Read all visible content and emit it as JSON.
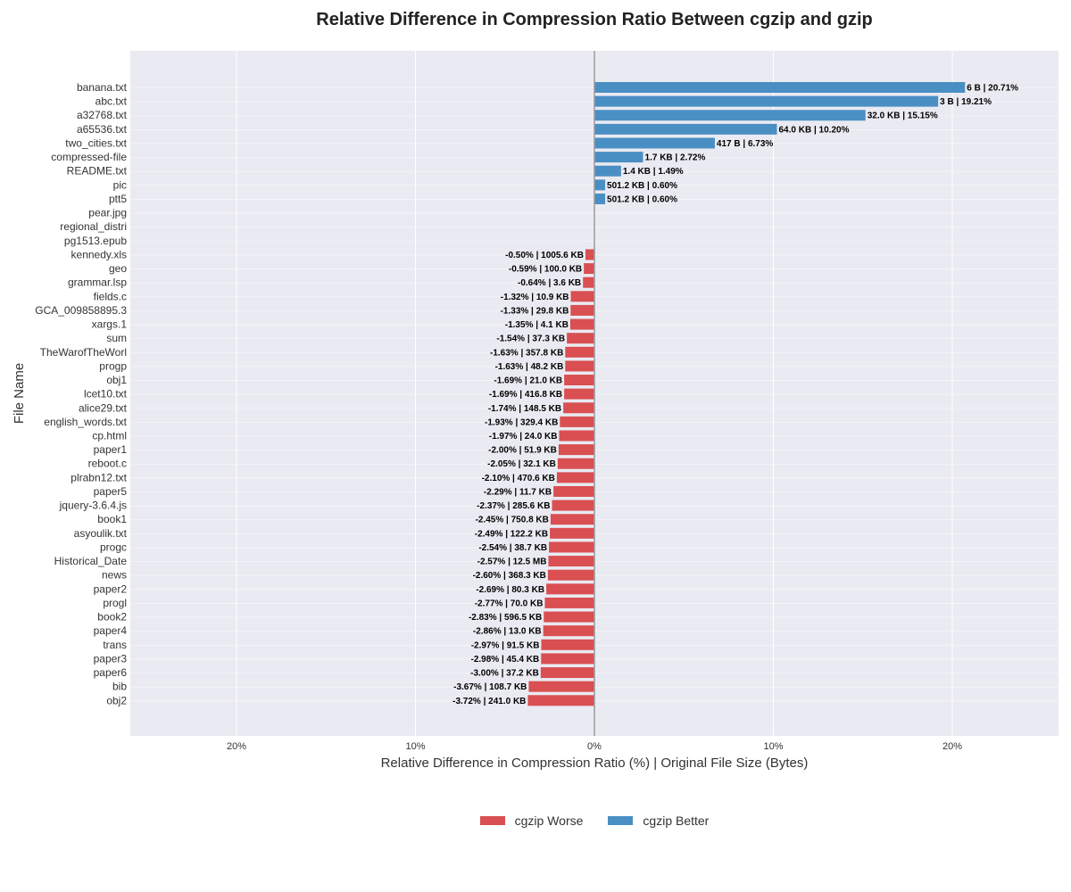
{
  "chart_data": {
    "type": "bar",
    "orientation": "horizontal",
    "title": "Relative Difference in Compression Ratio Between cgzip and gzip",
    "xlabel": "Relative Difference in Compression Ratio (%) | Original File Size (Bytes)",
    "ylabel": "File Name",
    "xlim": [
      -26,
      26
    ],
    "xticks": [
      -20,
      -10,
      0,
      10,
      20
    ],
    "xtick_labels": [
      "20%",
      "10%",
      "0%",
      "10%",
      "20%"
    ],
    "grid": true,
    "legend_position": "bottom-center",
    "colors": {
      "worse": "#d94f52",
      "better": "#4a8fc4",
      "background": "#eaeaf2",
      "zero_line": "#999999"
    },
    "legend": [
      {
        "name": "cgzip Worse",
        "color": "#d94f52"
      },
      {
        "name": "cgzip Better",
        "color": "#4a8fc4"
      }
    ],
    "bars": [
      {
        "name": "banana.txt",
        "value": 20.71,
        "label": "6 B | 20.71%"
      },
      {
        "name": "abc.txt",
        "value": 19.21,
        "label": "3 B | 19.21%"
      },
      {
        "name": "a32768.txt",
        "value": 15.15,
        "label": "32.0 KB | 15.15%"
      },
      {
        "name": "a65536.txt",
        "value": 10.2,
        "label": "64.0 KB | 10.20%"
      },
      {
        "name": "two_cities.txt",
        "value": 6.73,
        "label": "417 B | 6.73%"
      },
      {
        "name": "compressed-file",
        "value": 2.72,
        "label": "1.7 KB | 2.72%"
      },
      {
        "name": "README.txt",
        "value": 1.49,
        "label": "1.4 KB | 1.49%"
      },
      {
        "name": "pic",
        "value": 0.6,
        "label": "501.2 KB | 0.60%"
      },
      {
        "name": "ptt5",
        "value": 0.6,
        "label": "501.2 KB | 0.60%"
      },
      {
        "name": "pear.jpg",
        "value": 0,
        "label": ""
      },
      {
        "name": "regional_distri",
        "value": 0,
        "label": ""
      },
      {
        "name": "pg1513.epub",
        "value": -0.01,
        "label": ""
      },
      {
        "name": "kennedy.xls",
        "value": -0.5,
        "label": "-0.50% | 1005.6 KB"
      },
      {
        "name": "geo",
        "value": -0.59,
        "label": "-0.59% | 100.0 KB"
      },
      {
        "name": "grammar.lsp",
        "value": -0.64,
        "label": "-0.64% | 3.6 KB"
      },
      {
        "name": "fields.c",
        "value": -1.32,
        "label": "-1.32% | 10.9 KB"
      },
      {
        "name": "GCA_009858895.3",
        "value": -1.33,
        "label": "-1.33% | 29.8 KB"
      },
      {
        "name": "xargs.1",
        "value": -1.35,
        "label": "-1.35% | 4.1 KB"
      },
      {
        "name": "sum",
        "value": -1.54,
        "label": "-1.54% | 37.3 KB"
      },
      {
        "name": "TheWarofTheWorl",
        "value": -1.63,
        "label": "-1.63% | 357.8 KB"
      },
      {
        "name": "progp",
        "value": -1.63,
        "label": "-1.63% | 48.2 KB"
      },
      {
        "name": "obj1",
        "value": -1.69,
        "label": "-1.69% | 21.0 KB"
      },
      {
        "name": "lcet10.txt",
        "value": -1.69,
        "label": "-1.69% | 416.8 KB"
      },
      {
        "name": "alice29.txt",
        "value": -1.74,
        "label": "-1.74% | 148.5 KB"
      },
      {
        "name": "english_words.txt",
        "value": -1.93,
        "label": "-1.93% | 329.4 KB"
      },
      {
        "name": "cp.html",
        "value": -1.97,
        "label": "-1.97% | 24.0 KB"
      },
      {
        "name": "paper1",
        "value": -2.0,
        "label": "-2.00% | 51.9 KB"
      },
      {
        "name": "reboot.c",
        "value": -2.05,
        "label": "-2.05% | 32.1 KB"
      },
      {
        "name": "plrabn12.txt",
        "value": -2.1,
        "label": "-2.10% | 470.6 KB"
      },
      {
        "name": "paper5",
        "value": -2.29,
        "label": "-2.29% | 11.7 KB"
      },
      {
        "name": "jquery-3.6.4.js",
        "value": -2.37,
        "label": "-2.37% | 285.6 KB"
      },
      {
        "name": "book1",
        "value": -2.45,
        "label": "-2.45% | 750.8 KB"
      },
      {
        "name": "asyoulik.txt",
        "value": -2.49,
        "label": "-2.49% | 122.2 KB"
      },
      {
        "name": "progc",
        "value": -2.54,
        "label": "-2.54% | 38.7 KB"
      },
      {
        "name": "Historical_Date",
        "value": -2.57,
        "label": "-2.57% | 12.5 MB"
      },
      {
        "name": "news",
        "value": -2.6,
        "label": "-2.60% | 368.3 KB"
      },
      {
        "name": "paper2",
        "value": -2.69,
        "label": "-2.69% | 80.3 KB"
      },
      {
        "name": "progl",
        "value": -2.77,
        "label": "-2.77% | 70.0 KB"
      },
      {
        "name": "book2",
        "value": -2.83,
        "label": "-2.83% | 596.5 KB"
      },
      {
        "name": "paper4",
        "value": -2.86,
        "label": "-2.86% | 13.0 KB"
      },
      {
        "name": "trans",
        "value": -2.97,
        "label": "-2.97% | 91.5 KB"
      },
      {
        "name": "paper3",
        "value": -2.98,
        "label": "-2.98% | 45.4 KB"
      },
      {
        "name": "paper6",
        "value": -3.0,
        "label": "-3.00% | 37.2 KB"
      },
      {
        "name": "bib",
        "value": -3.67,
        "label": "-3.67% | 108.7 KB"
      },
      {
        "name": "obj2",
        "value": -3.72,
        "label": "-3.72% | 241.0 KB"
      }
    ]
  }
}
